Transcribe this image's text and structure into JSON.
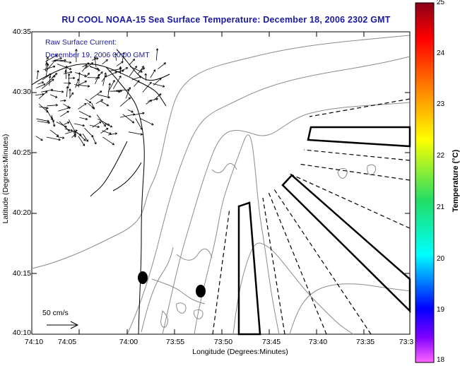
{
  "title": "RU COOL  NOAA-15  Sea Surface Temperature:  December 18, 2006 2302 GMT",
  "subtitle_line1": "Raw Surface Current:",
  "subtitle_line2": "December 19, 2006 00:00 GMT",
  "axes": {
    "xlabel": "Longitude (Degrees:Minutes)",
    "ylabel": "Latitude (Degrees:Minutes)",
    "xticks": [
      "74:10",
      "74:05",
      "74:00",
      "73:55",
      "73:50",
      "73:45",
      "73:40",
      "73:35",
      "73:3"
    ],
    "yticks": [
      "40:35",
      "40:30",
      "40:25",
      "40:20",
      "40:15",
      "40:10"
    ]
  },
  "colorbar": {
    "label": "Temperature (°C)",
    "ticks": [
      "25",
      "24",
      "23",
      "22",
      "21",
      "20",
      "19",
      "18"
    ],
    "colors": [
      "#8a0018",
      "#ff0000",
      "#ff8c00",
      "#ffff00",
      "#22dd66",
      "#00ffff",
      "#0000ff",
      "#ff00ff"
    ]
  },
  "scale_label": "50 cm/s",
  "colors": {
    "title": "#1a1aa0",
    "contour": "#8c8c8c",
    "land": "#ffffff"
  }
}
